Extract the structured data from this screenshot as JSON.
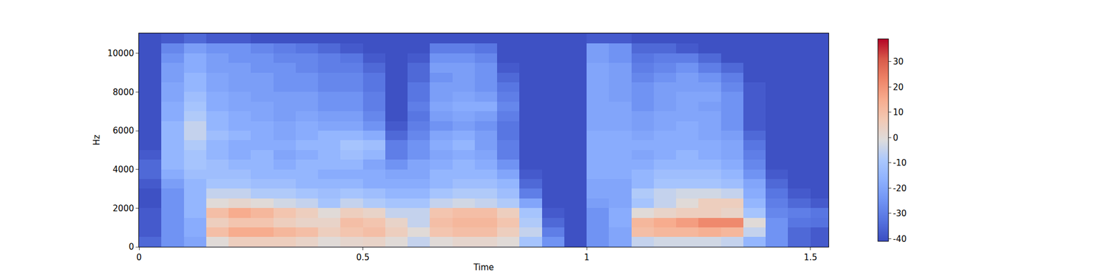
{
  "chart_data": {
    "type": "heatmap",
    "x_label": "Time",
    "y_label": "Hz",
    "x": [
      0.025,
      0.075,
      0.125,
      0.175,
      0.225,
      0.275,
      0.325,
      0.375,
      0.425,
      0.475,
      0.525,
      0.575,
      0.625,
      0.675,
      0.725,
      0.775,
      0.825,
      0.875,
      0.925,
      0.975,
      1.025,
      1.075,
      1.125,
      1.175,
      1.225,
      1.275,
      1.325,
      1.375,
      1.425,
      1.475,
      1.525
    ],
    "y": [
      250,
      750,
      1250,
      1750,
      2250,
      2750,
      3250,
      3750,
      4250,
      4750,
      5250,
      5750,
      6250,
      6750,
      7250,
      7750,
      8250,
      8750,
      9250,
      9750,
      10250,
      10750
    ],
    "xlim": [
      0,
      1.54
    ],
    "xticks": [
      0,
      0.5,
      1,
      1.5
    ],
    "ylim": [
      0,
      11025
    ],
    "yticks": [
      0,
      2000,
      4000,
      6000,
      8000,
      10000
    ],
    "colorbar": {
      "range": [
        -41,
        39
      ],
      "ticks": [
        -40,
        -30,
        -20,
        -10,
        0,
        10,
        20,
        30
      ]
    },
    "cells": [
      [
        -35,
        -25,
        -20,
        0,
        5,
        5,
        5,
        3,
        0,
        2,
        3,
        0,
        -5,
        0,
        2,
        2,
        0,
        -10,
        -25,
        -40,
        -25,
        -20,
        -5,
        -3,
        -3,
        -3,
        -5,
        -15,
        -25,
        -35,
        -38
      ],
      [
        -38,
        -25,
        -18,
        10,
        15,
        15,
        12,
        10,
        5,
        8,
        10,
        5,
        0,
        8,
        10,
        10,
        5,
        -5,
        -30,
        -40,
        -25,
        -20,
        10,
        12,
        12,
        14,
        12,
        -5,
        -25,
        -35,
        -38
      ],
      [
        -38,
        -25,
        -18,
        5,
        8,
        8,
        5,
        3,
        3,
        10,
        8,
        3,
        -5,
        10,
        12,
        12,
        8,
        -8,
        -35,
        -40,
        -25,
        -18,
        12,
        15,
        18,
        22,
        22,
        0,
        -25,
        -32,
        -33
      ],
      [
        -38,
        -25,
        -15,
        10,
        15,
        12,
        8,
        5,
        0,
        5,
        3,
        -5,
        -5,
        8,
        10,
        10,
        5,
        -10,
        -38,
        -40,
        -25,
        -18,
        0,
        3,
        5,
        5,
        3,
        -10,
        -28,
        -30,
        -32
      ],
      [
        -40,
        -25,
        -15,
        0,
        2,
        0,
        -3,
        -5,
        -10,
        -5,
        -8,
        -10,
        -10,
        -5,
        -3,
        -5,
        -8,
        -20,
        -40,
        -40,
        -22,
        -20,
        -10,
        -5,
        0,
        5,
        5,
        -15,
        -30,
        -35,
        -38
      ],
      [
        -40,
        -25,
        -15,
        -5,
        -5,
        -8,
        -8,
        -10,
        -12,
        -10,
        -12,
        -15,
        -15,
        -10,
        -8,
        -8,
        -12,
        -30,
        -40,
        -40,
        -20,
        -20,
        -8,
        -5,
        -3,
        -3,
        -5,
        -18,
        -32,
        -38,
        -40
      ],
      [
        -38,
        -22,
        -15,
        -10,
        -10,
        -12,
        -12,
        -15,
        -15,
        -15,
        -18,
        -18,
        -18,
        -15,
        -12,
        -12,
        -15,
        -35,
        -40,
        -40,
        -20,
        -20,
        -15,
        -10,
        -10,
        -10,
        -12,
        -20,
        -35,
        -40,
        -40
      ],
      [
        -35,
        -18,
        -12,
        -12,
        -12,
        -15,
        -15,
        -15,
        -18,
        -18,
        -18,
        -20,
        -20,
        -15,
        -15,
        -15,
        -20,
        -38,
        -40,
        -40,
        -18,
        -18,
        -15,
        -12,
        -12,
        -12,
        -15,
        -25,
        -38,
        -40,
        -40
      ],
      [
        -35,
        -15,
        -10,
        -12,
        -15,
        -15,
        -18,
        -15,
        -15,
        -15,
        -20,
        -25,
        -20,
        -18,
        -15,
        -18,
        -25,
        -40,
        -40,
        -40,
        -18,
        -18,
        -18,
        -15,
        -15,
        -15,
        -18,
        -28,
        -40,
        -40,
        -40
      ],
      [
        -38,
        -15,
        -10,
        -15,
        -18,
        -15,
        -20,
        -18,
        -15,
        -12,
        -15,
        -30,
        -25,
        -20,
        -18,
        -20,
        -30,
        -40,
        -40,
        -40,
        -18,
        -18,
        -20,
        -18,
        -15,
        -18,
        -20,
        -30,
        -40,
        -40,
        -40
      ],
      [
        -40,
        -15,
        -8,
        -15,
        -18,
        -18,
        -18,
        -15,
        -15,
        -10,
        -12,
        -30,
        -25,
        -18,
        -15,
        -22,
        -30,
        -40,
        -40,
        -40,
        -18,
        -18,
        -18,
        -18,
        -18,
        -18,
        -20,
        -32,
        -40,
        -40,
        -40
      ],
      [
        -40,
        -15,
        -5,
        -12,
        -15,
        -18,
        -20,
        -18,
        -15,
        -15,
        -18,
        -35,
        -28,
        -20,
        -18,
        -22,
        -32,
        -40,
        -40,
        -40,
        -18,
        -18,
        -20,
        -18,
        -18,
        -20,
        -22,
        -35,
        -40,
        -40,
        -40
      ],
      [
        -40,
        -15,
        -5,
        -15,
        -18,
        -18,
        -20,
        -18,
        -20,
        -20,
        -25,
        -38,
        -30,
        -25,
        -22,
        -25,
        -32,
        -40,
        -40,
        -40,
        -20,
        -20,
        -22,
        -20,
        -18,
        -20,
        -25,
        -38,
        -40,
        -40,
        -40
      ],
      [
        -40,
        -18,
        -8,
        -15,
        -18,
        -20,
        -22,
        -20,
        -22,
        -22,
        -28,
        -40,
        -32,
        -22,
        -20,
        -22,
        -30,
        -40,
        -40,
        -40,
        -20,
        -20,
        -22,
        -20,
        -20,
        -20,
        -25,
        -38,
        -40,
        -40,
        -40
      ],
      [
        -40,
        -18,
        -10,
        -18,
        -20,
        -20,
        -22,
        -22,
        -25,
        -25,
        -30,
        -40,
        -30,
        -20,
        -18,
        -18,
        -28,
        -40,
        -40,
        -40,
        -20,
        -20,
        -25,
        -22,
        -20,
        -22,
        -25,
        -38,
        -40,
        -40,
        -40
      ],
      [
        -40,
        -20,
        -12,
        -18,
        -20,
        -22,
        -22,
        -22,
        -25,
        -25,
        -30,
        -40,
        -32,
        -22,
        -20,
        -22,
        -30,
        -40,
        -40,
        -40,
        -20,
        -22,
        -25,
        -22,
        -20,
        -20,
        -25,
        -38,
        -40,
        -40,
        -40
      ],
      [
        -40,
        -20,
        -15,
        -20,
        -22,
        -22,
        -25,
        -25,
        -28,
        -28,
        -32,
        -40,
        -32,
        -22,
        -22,
        -25,
        -32,
        -40,
        -40,
        -40,
        -20,
        -22,
        -25,
        -22,
        -22,
        -22,
        -28,
        -38,
        -40,
        -40,
        -40
      ],
      [
        -40,
        -22,
        -15,
        -20,
        -22,
        -22,
        -25,
        -25,
        -28,
        -28,
        -32,
        -40,
        -35,
        -25,
        -22,
        -25,
        -35,
        -40,
        -40,
        -40,
        -20,
        -22,
        -28,
        -25,
        -22,
        -25,
        -30,
        -40,
        -40,
        -40,
        -40
      ],
      [
        -40,
        -22,
        -18,
        -22,
        -22,
        -25,
        -25,
        -28,
        -30,
        -30,
        -35,
        -40,
        -35,
        -22,
        -22,
        -25,
        -38,
        -40,
        -40,
        -40,
        -20,
        -22,
        -30,
        -28,
        -25,
        -30,
        -35,
        -40,
        -40,
        -40,
        -40
      ],
      [
        -40,
        -25,
        -18,
        -22,
        -25,
        -25,
        -28,
        -28,
        -30,
        -32,
        -38,
        -40,
        -38,
        -25,
        -25,
        -28,
        -40,
        -40,
        -40,
        -40,
        -22,
        -25,
        -32,
        -30,
        -30,
        -35,
        -40,
        -40,
        -40,
        -40,
        -40
      ],
      [
        -40,
        -28,
        -22,
        -25,
        -25,
        -28,
        -30,
        -32,
        -35,
        -38,
        -40,
        -40,
        -40,
        -30,
        -30,
        -32,
        -40,
        -40,
        -40,
        -40,
        -22,
        -25,
        -35,
        -35,
        -38,
        -40,
        -40,
        -40,
        -40,
        -40,
        -40
      ],
      [
        -40,
        -38,
        -35,
        -38,
        -38,
        -40,
        -40,
        -40,
        -40,
        -40,
        -40,
        -40,
        -40,
        -40,
        -40,
        -40,
        -40,
        -40,
        -40,
        -40,
        -38,
        -38,
        -40,
        -40,
        -40,
        -40,
        -40,
        -40,
        -40,
        -40,
        -40
      ]
    ]
  }
}
